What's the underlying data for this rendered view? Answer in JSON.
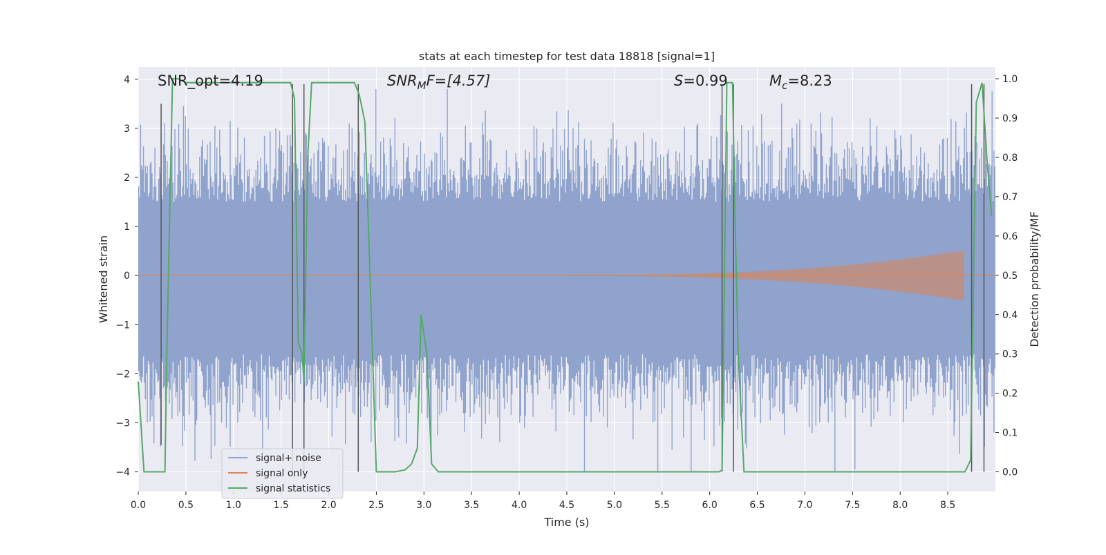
{
  "chart_data": {
    "type": "line",
    "title": "stats at each timestep for test data 18818 [signal=1]",
    "xlabel": "Time (s)",
    "ylabel": "Whitened strain",
    "ylabel_right": "Detection probability/MF",
    "xlim": [
      0,
      9.0
    ],
    "ylim": [
      -4.4,
      4.25
    ],
    "ylim_right": [
      -0.05,
      1.03
    ],
    "xticks": [
      "0.0",
      "0.5",
      "1.0",
      "1.5",
      "2.0",
      "2.5",
      "3.0",
      "3.5",
      "4.0",
      "4.5",
      "5.0",
      "5.5",
      "6.0",
      "6.5",
      "7.0",
      "7.5",
      "8.0",
      "8.5"
    ],
    "yticks_left": [
      "−4",
      "−3",
      "−2",
      "−1",
      "0",
      "1",
      "2",
      "3",
      "4"
    ],
    "yticks_right": [
      "0.0",
      "0.1",
      "0.2",
      "0.3",
      "0.4",
      "0.5",
      "0.6",
      "0.7",
      "0.8",
      "0.9",
      "1.0"
    ],
    "annotations": {
      "snr_opt": "SNR_opt=4.19",
      "snr_mf_main": "SNR",
      "snr_mf_sub": "M",
      "snr_mf_rest": "F=[4.57]",
      "s_main": "S",
      "s_rest": "=0.99",
      "mc_main": "M",
      "mc_sub": "c",
      "mc_rest": "=8.23"
    },
    "legend": {
      "position": "lower-left",
      "entries": [
        "signal+ noise",
        "signal only",
        "signal statistics"
      ]
    },
    "colors": {
      "noise": "#8fa3cc",
      "signal": "#dd8452",
      "stats": "#55a868",
      "vline": "#555555",
      "plot_bg": "#eaeaf2",
      "grid": "#ffffff"
    },
    "series": [
      {
        "name": "signal statistics",
        "axis": "right",
        "x": [
          0.0,
          0.06,
          0.12,
          0.18,
          0.24,
          0.28,
          0.3,
          0.36,
          0.42,
          0.5,
          0.6,
          0.8,
          1.0,
          1.2,
          1.4,
          1.6,
          1.64,
          1.68,
          1.72,
          1.74,
          1.78,
          1.82,
          1.9,
          2.0,
          2.1,
          2.2,
          2.27,
          2.32,
          2.38,
          2.42,
          2.46,
          2.5,
          2.6,
          2.7,
          2.8,
          2.87,
          2.93,
          2.97,
          3.03,
          3.08,
          3.15,
          3.3,
          3.6,
          4.0,
          4.5,
          5.0,
          5.5,
          5.9,
          6.1,
          6.13,
          6.18,
          6.24,
          6.27,
          6.3,
          6.36,
          6.45,
          6.6,
          6.8,
          7.0,
          7.5,
          8.0,
          8.4,
          8.6,
          8.68,
          8.74,
          8.8,
          8.86,
          8.91,
          8.96
        ],
        "values": [
          0.23,
          0.0,
          0.0,
          0.0,
          0.0,
          0.0,
          0.3,
          1.0,
          1.0,
          0.99,
          0.99,
          0.99,
          0.99,
          0.99,
          0.99,
          0.99,
          0.95,
          0.33,
          0.3,
          0.23,
          0.8,
          0.99,
          0.99,
          0.99,
          0.99,
          0.99,
          0.99,
          0.96,
          0.89,
          0.6,
          0.3,
          0.0,
          0.0,
          0.0,
          0.005,
          0.02,
          0.06,
          0.4,
          0.3,
          0.02,
          0.0,
          0.0,
          0.0,
          0.0,
          0.0,
          0.0,
          0.0,
          0.0,
          0.0,
          0.005,
          0.99,
          0.99,
          0.6,
          0.3,
          0.0,
          0.0,
          0.0,
          0.0,
          0.0,
          0.0,
          0.0,
          0.0,
          0.0,
          0.0,
          0.03,
          0.94,
          0.99,
          0.8,
          0.65
        ]
      },
      {
        "name": "signal only",
        "axis": "left",
        "envelope": {
          "t_start": 4.5,
          "t_end": 8.67,
          "peak_amplitude": 0.5
        }
      },
      {
        "name": "signal+ noise",
        "axis": "left",
        "description_range": [
          -4.0,
          3.8
        ]
      }
    ],
    "vlines": [
      {
        "x": 0.24,
        "y_bottom": -3.45,
        "y_top": 3.5
      },
      {
        "x": 1.62,
        "y_bottom": -4.0,
        "y_top": 3.9
      },
      {
        "x": 1.74,
        "y_bottom": -4.0,
        "y_top": 3.9
      },
      {
        "x": 2.31,
        "y_bottom": -4.0,
        "y_top": 3.9
      },
      {
        "x": 6.13,
        "y_bottom": -4.0,
        "y_top": 3.9
      },
      {
        "x": 6.25,
        "y_bottom": -4.0,
        "y_top": 3.9
      },
      {
        "x": 8.75,
        "y_bottom": -4.0,
        "y_top": 3.9
      },
      {
        "x": 8.88,
        "y_bottom": -4.0,
        "y_top": 3.9
      }
    ]
  }
}
